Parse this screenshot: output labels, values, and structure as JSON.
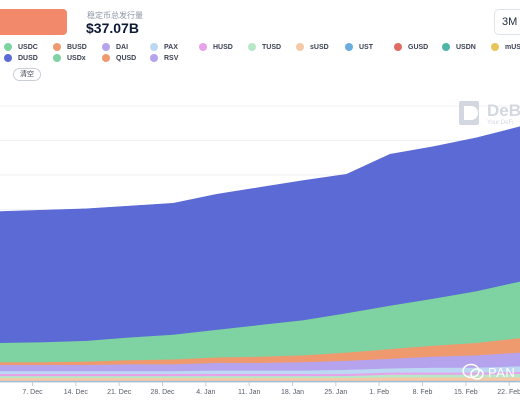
{
  "header": {
    "selector_label": "",
    "stat_label": "稳定币总发行量",
    "stat_value": "$37.07B",
    "range_button": "3M"
  },
  "legend": {
    "items": [
      {
        "label": "USDC",
        "color": "#7fd3a2"
      },
      {
        "label": "BUSD",
        "color": "#ef9a6e"
      },
      {
        "label": "DAI",
        "color": "#b5a3ee"
      },
      {
        "label": "PAX",
        "color": "#bcd8f3"
      },
      {
        "label": "HUSD",
        "color": "#e7a3ea"
      },
      {
        "label": "TUSD",
        "color": "#b7e7c6"
      },
      {
        "label": "sUSD",
        "color": "#f6c9a6"
      },
      {
        "label": "UST",
        "color": "#6aaee0"
      },
      {
        "label": "GUSD",
        "color": "#e06b63"
      },
      {
        "label": "USDN",
        "color": "#4fb5a8"
      },
      {
        "label": "mUSD",
        "color": "#e8c55a"
      },
      {
        "label": "DUSD",
        "color": "#5b6ad4"
      },
      {
        "label": "USDx",
        "color": "#7fd3a2"
      },
      {
        "label": "QUSD",
        "color": "#ef9a6e"
      },
      {
        "label": "RSV",
        "color": "#b5a3ee"
      }
    ],
    "clear_label": "清空"
  },
  "watermark": {
    "title": "DeBa",
    "subtitle": "Your DeFi"
  },
  "overlay": {
    "brand": "PAN"
  },
  "chart_data": {
    "type": "area",
    "stacked": true,
    "grid": true,
    "x_tick_labels": [
      "7. Dec",
      "14. Dec",
      "21. Dec",
      "28. Dec",
      "4. Jan",
      "11. Jan",
      "18. Jan",
      "25. Jan",
      "1. Feb",
      "8. Feb",
      "15. Feb",
      "22. Feb"
    ],
    "x": [
      "Dec 2",
      "Dec 9",
      "Dec 16",
      "Dec 23",
      "Dec 30",
      "Jan 6",
      "Jan 13",
      "Jan 20",
      "Jan 27",
      "Feb 3",
      "Feb 10",
      "Feb 17",
      "Feb 24"
    ],
    "unit": "B USD",
    "ylim": [
      0,
      40
    ],
    "series": [
      {
        "name": "UST",
        "color": "#6aaee0",
        "values": [
          0.2,
          0.2,
          0.2,
          0.2,
          0.2,
          0.2,
          0.2,
          0.2,
          0.2,
          0.2,
          0.2,
          0.2,
          0.2
        ]
      },
      {
        "name": "sUSD",
        "color": "#f6c9a6",
        "values": [
          0.4,
          0.4,
          0.4,
          0.4,
          0.4,
          0.4,
          0.4,
          0.4,
          0.4,
          0.5,
          0.5,
          0.5,
          0.5
        ]
      },
      {
        "name": "TUSD",
        "color": "#b7e7c6",
        "values": [
          0.3,
          0.3,
          0.3,
          0.3,
          0.3,
          0.3,
          0.3,
          0.3,
          0.3,
          0.4,
          0.4,
          0.4,
          0.5
        ]
      },
      {
        "name": "HUSD",
        "color": "#e7a3ea",
        "values": [
          0.3,
          0.3,
          0.3,
          0.3,
          0.3,
          0.3,
          0.3,
          0.3,
          0.3,
          0.3,
          0.3,
          0.3,
          0.3
        ]
      },
      {
        "name": "PAX",
        "color": "#bcd8f3",
        "values": [
          0.4,
          0.4,
          0.4,
          0.4,
          0.4,
          0.5,
          0.5,
          0.5,
          0.6,
          0.6,
          0.7,
          0.7,
          0.8
        ]
      },
      {
        "name": "DAI",
        "color": "#b5a3ee",
        "values": [
          0.9,
          0.9,
          0.9,
          1.0,
          1.0,
          1.1,
          1.1,
          1.2,
          1.3,
          1.4,
          1.6,
          1.8,
          2.0
        ]
      },
      {
        "name": "BUSD",
        "color": "#ef9a6e",
        "values": [
          0.4,
          0.4,
          0.5,
          0.6,
          0.7,
          0.8,
          0.9,
          1.0,
          1.2,
          1.4,
          1.6,
          1.8,
          2.1
        ]
      },
      {
        "name": "USDC",
        "color": "#7fd3a2",
        "values": [
          2.8,
          2.9,
          3.0,
          3.3,
          3.6,
          4.0,
          4.6,
          5.1,
          5.7,
          6.3,
          6.8,
          7.5,
          8.2
        ]
      },
      {
        "name": "DUSD",
        "color": "#5b6ad4",
        "values": [
          19.0,
          19.1,
          19.1,
          19.0,
          19.0,
          19.6,
          19.9,
          20.2,
          20.1,
          21.9,
          22.0,
          22.2,
          22.4
        ]
      }
    ]
  }
}
